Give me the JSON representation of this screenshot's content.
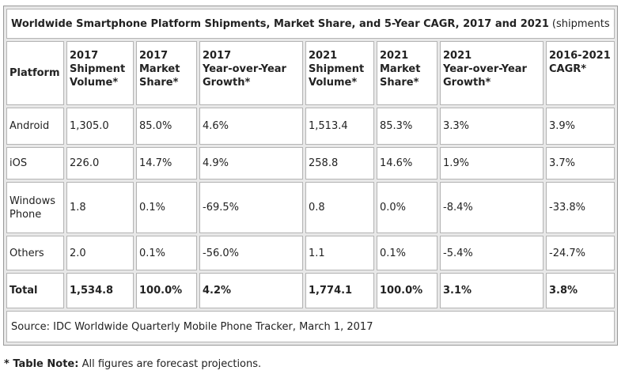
{
  "table": {
    "title": "Worldwide Smartphone Platform Shipments, Market Share, and 5-Year CAGR, 2017 and 2021",
    "unit": "(shipments in millions)",
    "headers": [
      "Platform",
      "2017\nShipment\nVolume*",
      "2017\nMarket\nShare*",
      "2017\nYear-over-Year\nGrowth*",
      "2021\nShipment\nVolume*",
      "2021\nMarket\nShare*",
      "2021\nYear-over-Year\nGrowth*",
      "2016-2021\nCAGR*"
    ],
    "rows": [
      [
        "Android",
        "1,305.0",
        "85.0%",
        "4.6%",
        "1,513.4",
        "85.3%",
        "3.3%",
        "3.9%"
      ],
      [
        "iOS",
        "226.0",
        "14.7%",
        "4.9%",
        "258.8",
        "14.6%",
        "1.9%",
        "3.7%"
      ],
      [
        "Windows\nPhone",
        "1.8",
        "0.1%",
        "-69.5%",
        "0.8",
        "0.0%",
        "-8.4%",
        "-33.8%"
      ],
      [
        "Others",
        "2.0",
        "0.1%",
        "-56.0%",
        "1.1",
        "0.1%",
        "-5.4%",
        "-24.7%"
      ],
      [
        "Total",
        "1,534.8",
        "100.0%",
        "4.2%",
        "1,774.1",
        "100.0%",
        "3.1%",
        "3.8%"
      ]
    ],
    "source": "Source: IDC Worldwide Quarterly Mobile Phone Tracker, March 1, 2017"
  },
  "note": {
    "label": "* Table Note:",
    "text": "All figures are forecast projections."
  },
  "chart_data": {
    "type": "table",
    "title": "Worldwide Smartphone Platform Shipments, Market Share, and 5-Year CAGR, 2017 and 2021",
    "columns": [
      "Platform",
      "2017 Shipment Volume*",
      "2017 Market Share*",
      "2017 Year-over-Year Growth*",
      "2021 Shipment Volume*",
      "2021 Market Share*",
      "2021 Year-over-Year Growth*",
      "2016-2021 CAGR*"
    ],
    "rows": [
      [
        "Android",
        1305.0,
        85.0,
        4.6,
        1513.4,
        85.3,
        3.3,
        3.9
      ],
      [
        "iOS",
        226.0,
        14.7,
        4.9,
        258.8,
        14.6,
        1.9,
        3.7
      ],
      [
        "Windows Phone",
        1.8,
        0.1,
        -69.5,
        0.8,
        0.0,
        -8.4,
        -33.8
      ],
      [
        "Others",
        2.0,
        0.1,
        -56.0,
        1.1,
        0.1,
        -5.4,
        -24.7
      ],
      [
        "Total",
        1534.8,
        100.0,
        4.2,
        1774.1,
        100.0,
        3.1,
        3.8
      ]
    ]
  }
}
